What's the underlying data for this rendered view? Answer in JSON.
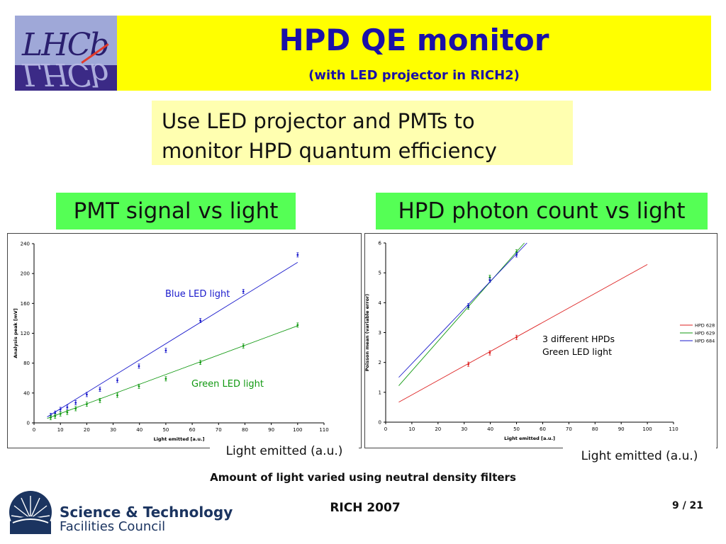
{
  "header": {
    "title": "HPD QE monitor",
    "subtitle": "(with LED projector in RICH2)",
    "logo_text": "LHCb"
  },
  "intro": {
    "line1": "Use LED projector and PMTs to",
    "line2": "monitor HPD quantum efficiency"
  },
  "labels": {
    "left": "PMT signal vs light",
    "right": "HPD photon count vs light"
  },
  "captions": {
    "left_xaxis": "Light emitted (a.u.)",
    "right_xaxis": "Light emitted (a.u.)",
    "footnote": "Amount of light varied using neutral density filters"
  },
  "footer": {
    "conference": "RICH 2007",
    "page": "9 / 21",
    "org_line1": "Science & Technology",
    "org_line2": "Facilities Council"
  },
  "colors": {
    "title_blue": "#1a10a8",
    "title_bg": "#ffff00",
    "intro_bg": "#ffffb0",
    "label_green": "#55ff55",
    "series_blue": "#1a1acc",
    "series_green": "#119911",
    "series_red": "#dd2222"
  },
  "chart_data": [
    {
      "type": "scatter",
      "xlabel": "Light emitted [a.u.]",
      "ylabel": "Analysis peak [mV]",
      "xlim": [
        0,
        110
      ],
      "ylim": [
        0,
        240
      ],
      "x_ticks": [
        "0",
        "10",
        "20",
        "30",
        "40",
        "50",
        "60",
        "70",
        "80",
        "90",
        "100",
        "110"
      ],
      "y_ticks": [
        "0",
        "40",
        "80",
        "120",
        "160",
        "200",
        "240"
      ],
      "grid": false,
      "series": [
        {
          "name": "Blue LED light",
          "color": "#1a1acc",
          "x": [
            6.3,
            8,
            10,
            12.6,
            15.8,
            20,
            25,
            31.6,
            39.8,
            50,
            63.1,
            79.4,
            100
          ],
          "y": [
            10,
            13,
            18,
            21,
            27,
            38,
            45,
            57,
            76,
            97,
            137,
            176,
            225
          ],
          "fit": [
            [
              5,
              8
            ],
            [
              100,
              215
            ]
          ]
        },
        {
          "name": "Green LED light",
          "color": "#119911",
          "x": [
            6.3,
            8,
            10,
            12.6,
            15.8,
            20,
            25,
            31.6,
            39.8,
            50,
            63.1,
            79.4,
            100
          ],
          "y": [
            7,
            9,
            12,
            14,
            19,
            25,
            30,
            37,
            49,
            59,
            81,
            103,
            131
          ],
          "fit": [
            [
              5,
              6
            ],
            [
              100,
              130
            ]
          ]
        }
      ]
    },
    {
      "type": "scatter",
      "xlabel": "Light emitted [a.u.]",
      "ylabel": "Poisson mean (variable error)",
      "xlim": [
        0,
        110
      ],
      "ylim": [
        0,
        6
      ],
      "x_ticks": [
        "0",
        "10",
        "20",
        "30",
        "40",
        "50",
        "60",
        "70",
        "80",
        "90",
        "100",
        "110"
      ],
      "y_ticks": [
        "0",
        "1",
        "2",
        "3",
        "4",
        "5",
        "6"
      ],
      "grid": false,
      "legend": "right",
      "annotation_line1": "3 different HPDs",
      "annotation_line2": "Green LED light",
      "series": [
        {
          "name": "HPD 628",
          "color": "#dd2222",
          "x": [
            31.6,
            39.8,
            50
          ],
          "y": [
            1.94,
            2.32,
            2.84
          ],
          "fit": [
            [
              5,
              0.67
            ],
            [
              100,
              5.28
            ]
          ]
        },
        {
          "name": "HPD 629",
          "color": "#119911",
          "x": [
            31.6,
            39.8,
            50
          ],
          "y": [
            3.85,
            4.85,
            5.7
          ],
          "fit": [
            [
              5,
              1.22
            ],
            [
              53,
              6.0
            ]
          ]
        },
        {
          "name": "HPD 684",
          "color": "#1a1acc",
          "x": [
            31.6,
            39.8,
            50
          ],
          "y": [
            3.9,
            4.75,
            5.6
          ],
          "fit": [
            [
              5,
              1.5
            ],
            [
              54,
              6.0
            ]
          ]
        }
      ]
    }
  ]
}
